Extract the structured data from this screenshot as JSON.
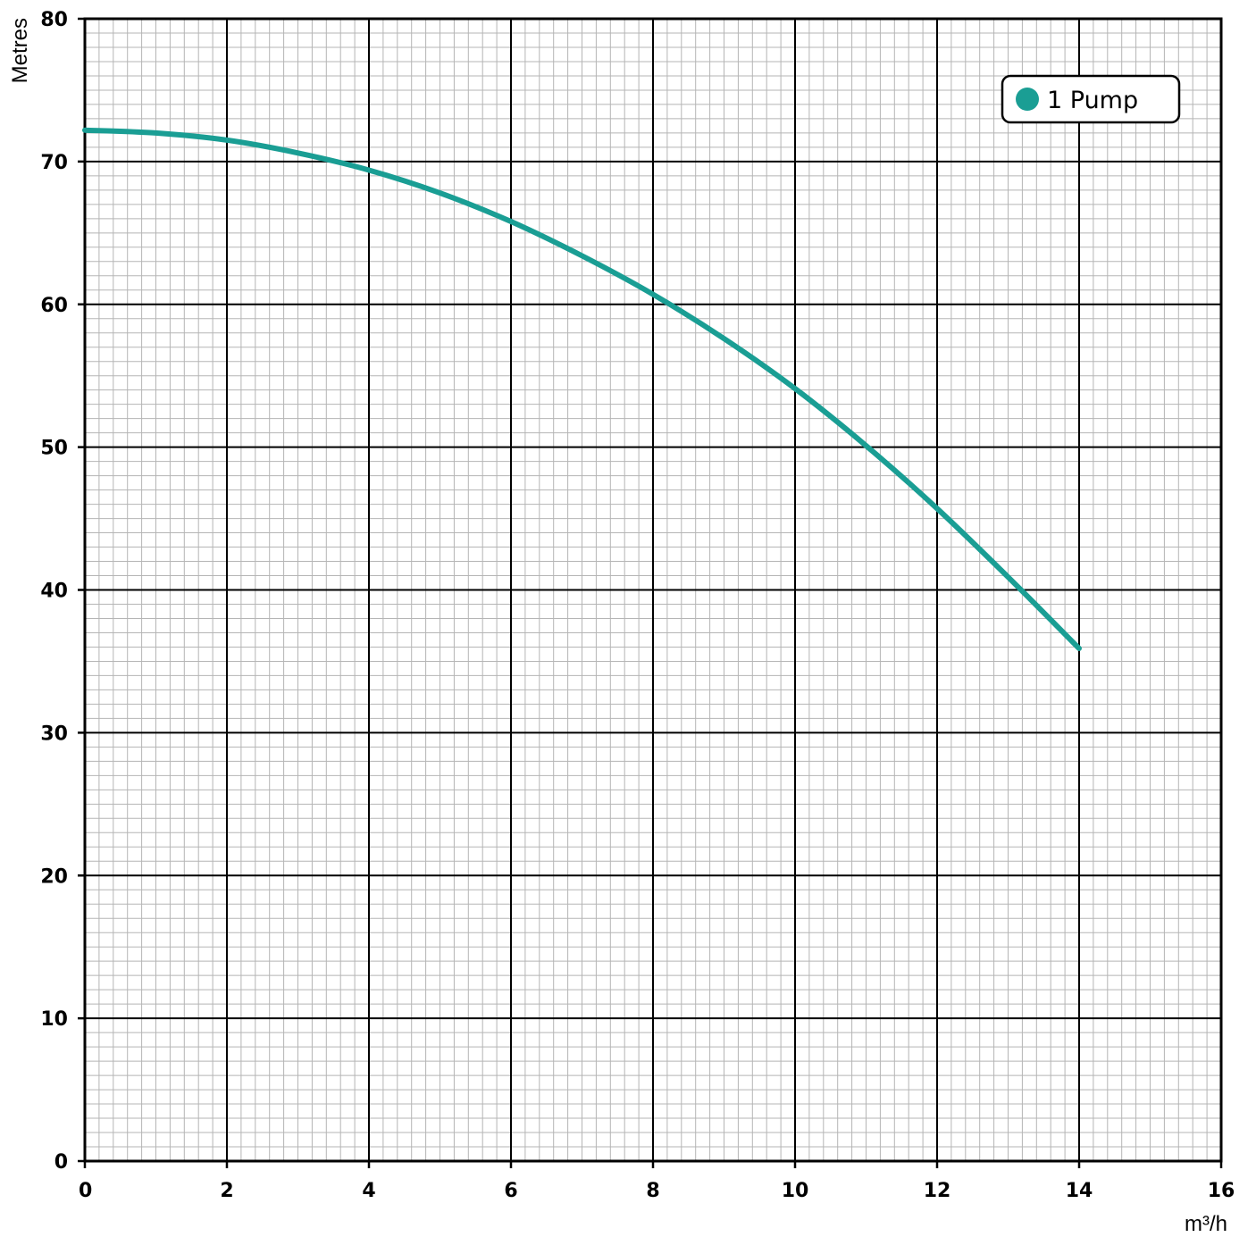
{
  "chart_data": {
    "type": "line",
    "title": "",
    "xlabel": "m³/h",
    "ylabel": "Metres",
    "xlim": [
      0,
      16
    ],
    "ylim": [
      0,
      80
    ],
    "x_ticks": [
      "0",
      "2",
      "4",
      "6",
      "8",
      "10",
      "12",
      "14",
      "16"
    ],
    "y_ticks": [
      "0",
      "10",
      "20",
      "30",
      "40",
      "50",
      "60",
      "70",
      "80"
    ],
    "grid": true,
    "legend_position": "top-right",
    "series": [
      {
        "name": "1 Pump",
        "color": "#1a9e94",
        "x": [
          0,
          1,
          2,
          3,
          4,
          5,
          6,
          7,
          8,
          9,
          10,
          11,
          12,
          13,
          14
        ],
        "y": [
          72.2,
          72.0,
          71.5,
          70.6,
          69.4,
          67.8,
          65.8,
          63.4,
          60.7,
          57.6,
          54.1,
          50.1,
          45.7,
          40.9,
          35.9
        ]
      }
    ]
  }
}
